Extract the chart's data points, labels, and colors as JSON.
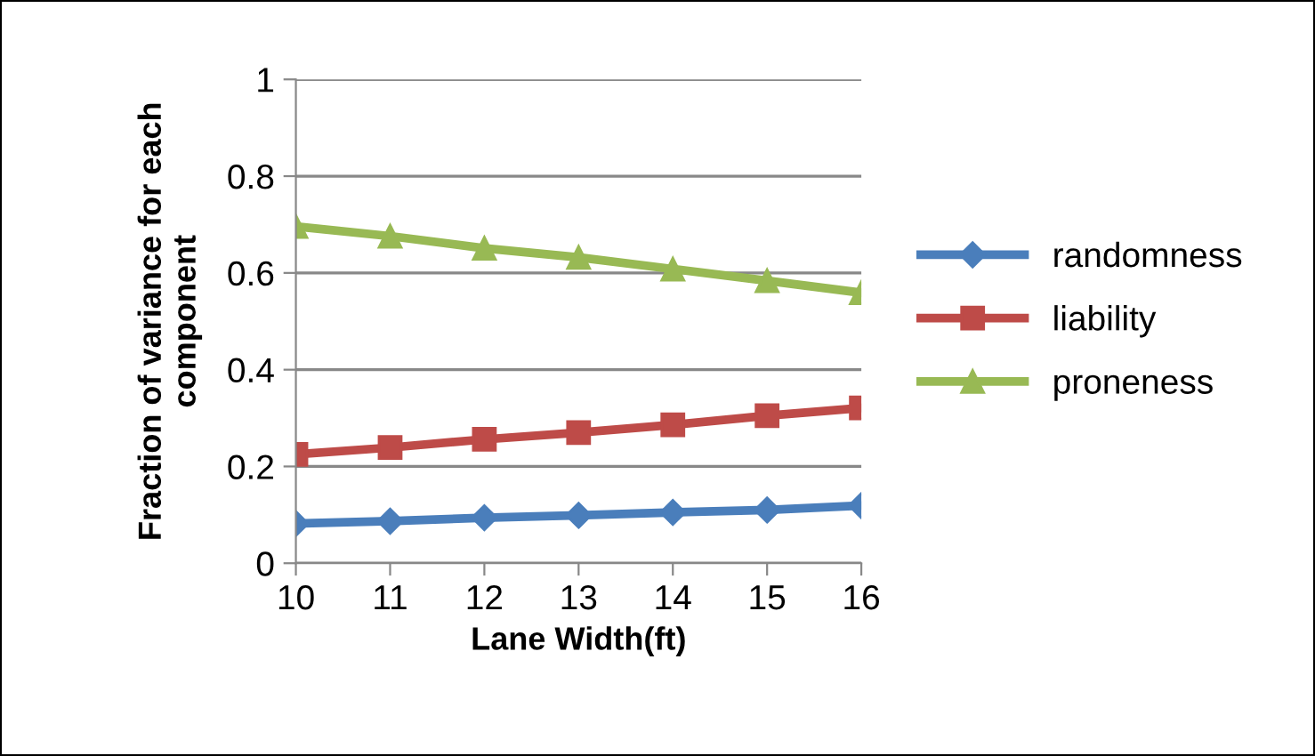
{
  "chart_data": {
    "type": "line",
    "xlabel": "Lane Width(ft)",
    "ylabel": "Fraction of variance for each\ncomponent",
    "categories": [
      "10",
      "11",
      "12",
      "13",
      "14",
      "15",
      "16"
    ],
    "series": [
      {
        "name": "randomness",
        "color": "#4a7ebb",
        "marker": "diamond",
        "values": [
          0.082,
          0.087,
          0.094,
          0.099,
          0.105,
          0.11,
          0.119
        ]
      },
      {
        "name": "liability",
        "color": "#be4b48",
        "marker": "square",
        "values": [
          0.225,
          0.239,
          0.256,
          0.27,
          0.286,
          0.305,
          0.321
        ]
      },
      {
        "name": "proneness",
        "color": "#98b954",
        "marker": "triangle",
        "values": [
          0.696,
          0.676,
          0.651,
          0.632,
          0.608,
          0.584,
          0.559
        ]
      }
    ],
    "ylim": [
      0,
      1
    ],
    "yticks": [
      0,
      0.2,
      0.4,
      0.6,
      0.8,
      1
    ],
    "grid": "y",
    "legend": "right"
  }
}
